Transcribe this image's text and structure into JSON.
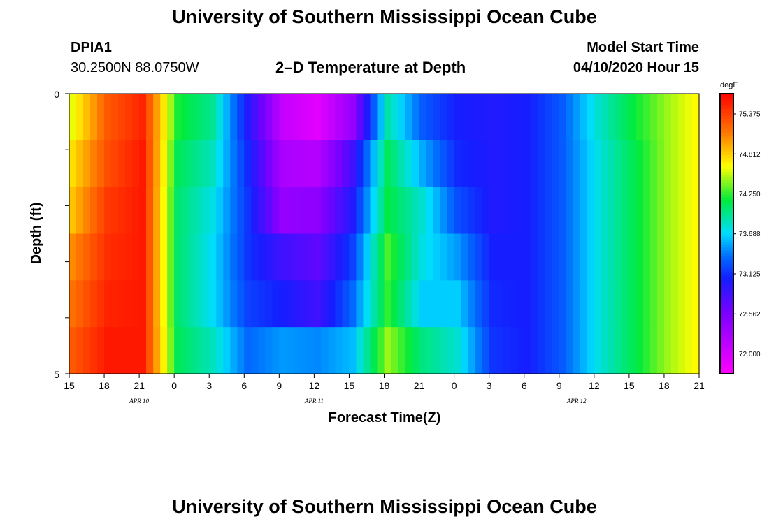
{
  "header": {
    "title": "University of Southern Mississippi Ocean Cube",
    "station_id": "DPIA1",
    "station_coords": "30.2500N 88.0750W",
    "plot_title": "2–D Temperature at Depth",
    "model_start_label": "Model Start Time",
    "model_start_value": "04/10/2020 Hour 15"
  },
  "footer": {
    "title": "University of Southern Mississippi Ocean Cube"
  },
  "chart_data": {
    "type": "heatmap",
    "title": "2–D Temperature at Depth",
    "xlabel": "Forecast Time(Z)",
    "ylabel": "Depth (ft)",
    "unit": "degF",
    "x_tick_labels": [
      "15",
      "18",
      "21",
      "0",
      "3",
      "6",
      "9",
      "12",
      "15",
      "18",
      "21",
      "0",
      "3",
      "6",
      "9",
      "12",
      "15",
      "18",
      "21"
    ],
    "date_labels": [
      "APR  10",
      "APR  11",
      "APR  12"
    ],
    "y_tick_labels": [
      "0",
      "5"
    ],
    "ylim": [
      0,
      5
    ],
    "colorbar_labels": [
      "75.375",
      "74.812",
      "74.250",
      "73.688",
      "73.125",
      "72.562",
      "72.000"
    ],
    "colorbar_range": [
      71.72,
      75.66
    ],
    "depth_layers_ft": [
      0.25,
      1.0,
      2.0,
      3.0,
      4.0,
      4.75
    ],
    "value_columns_note": "values sampled every 3 hours from 15Z Apr 10 to 21Z Apr 12",
    "values": [
      [
        74.6,
        75.25,
        75.5,
        74.2,
        73.95,
        73.0,
        72.1,
        71.9,
        72.4,
        73.9,
        73.3,
        73.05,
        73.0,
        73.05,
        73.3,
        73.8,
        74.15,
        74.45,
        74.7
      ],
      [
        74.75,
        75.3,
        75.55,
        74.1,
        73.85,
        73.1,
        72.25,
        72.2,
        72.85,
        74.1,
        73.55,
        73.1,
        73.0,
        73.05,
        73.3,
        73.75,
        74.1,
        74.45,
        74.7
      ],
      [
        74.85,
        75.4,
        75.55,
        74.05,
        73.75,
        73.15,
        72.4,
        72.45,
        73.0,
        74.15,
        73.8,
        73.25,
        73.0,
        73.05,
        73.3,
        73.75,
        74.1,
        74.45,
        74.7
      ],
      [
        75.05,
        75.45,
        75.55,
        74.05,
        73.7,
        73.15,
        72.85,
        72.7,
        73.2,
        74.3,
        73.75,
        73.5,
        73.05,
        73.05,
        73.3,
        73.75,
        74.1,
        74.45,
        74.7
      ],
      [
        75.15,
        75.5,
        75.55,
        74.05,
        73.7,
        73.2,
        73.05,
        72.85,
        73.35,
        74.25,
        73.65,
        73.65,
        73.1,
        73.05,
        73.3,
        73.75,
        74.1,
        74.45,
        74.7
      ],
      [
        75.25,
        75.55,
        75.55,
        74.1,
        73.85,
        73.35,
        73.5,
        73.45,
        73.6,
        74.45,
        74.0,
        73.8,
        73.15,
        73.05,
        73.3,
        73.75,
        74.1,
        74.45,
        74.7
      ]
    ],
    "grid": false
  }
}
